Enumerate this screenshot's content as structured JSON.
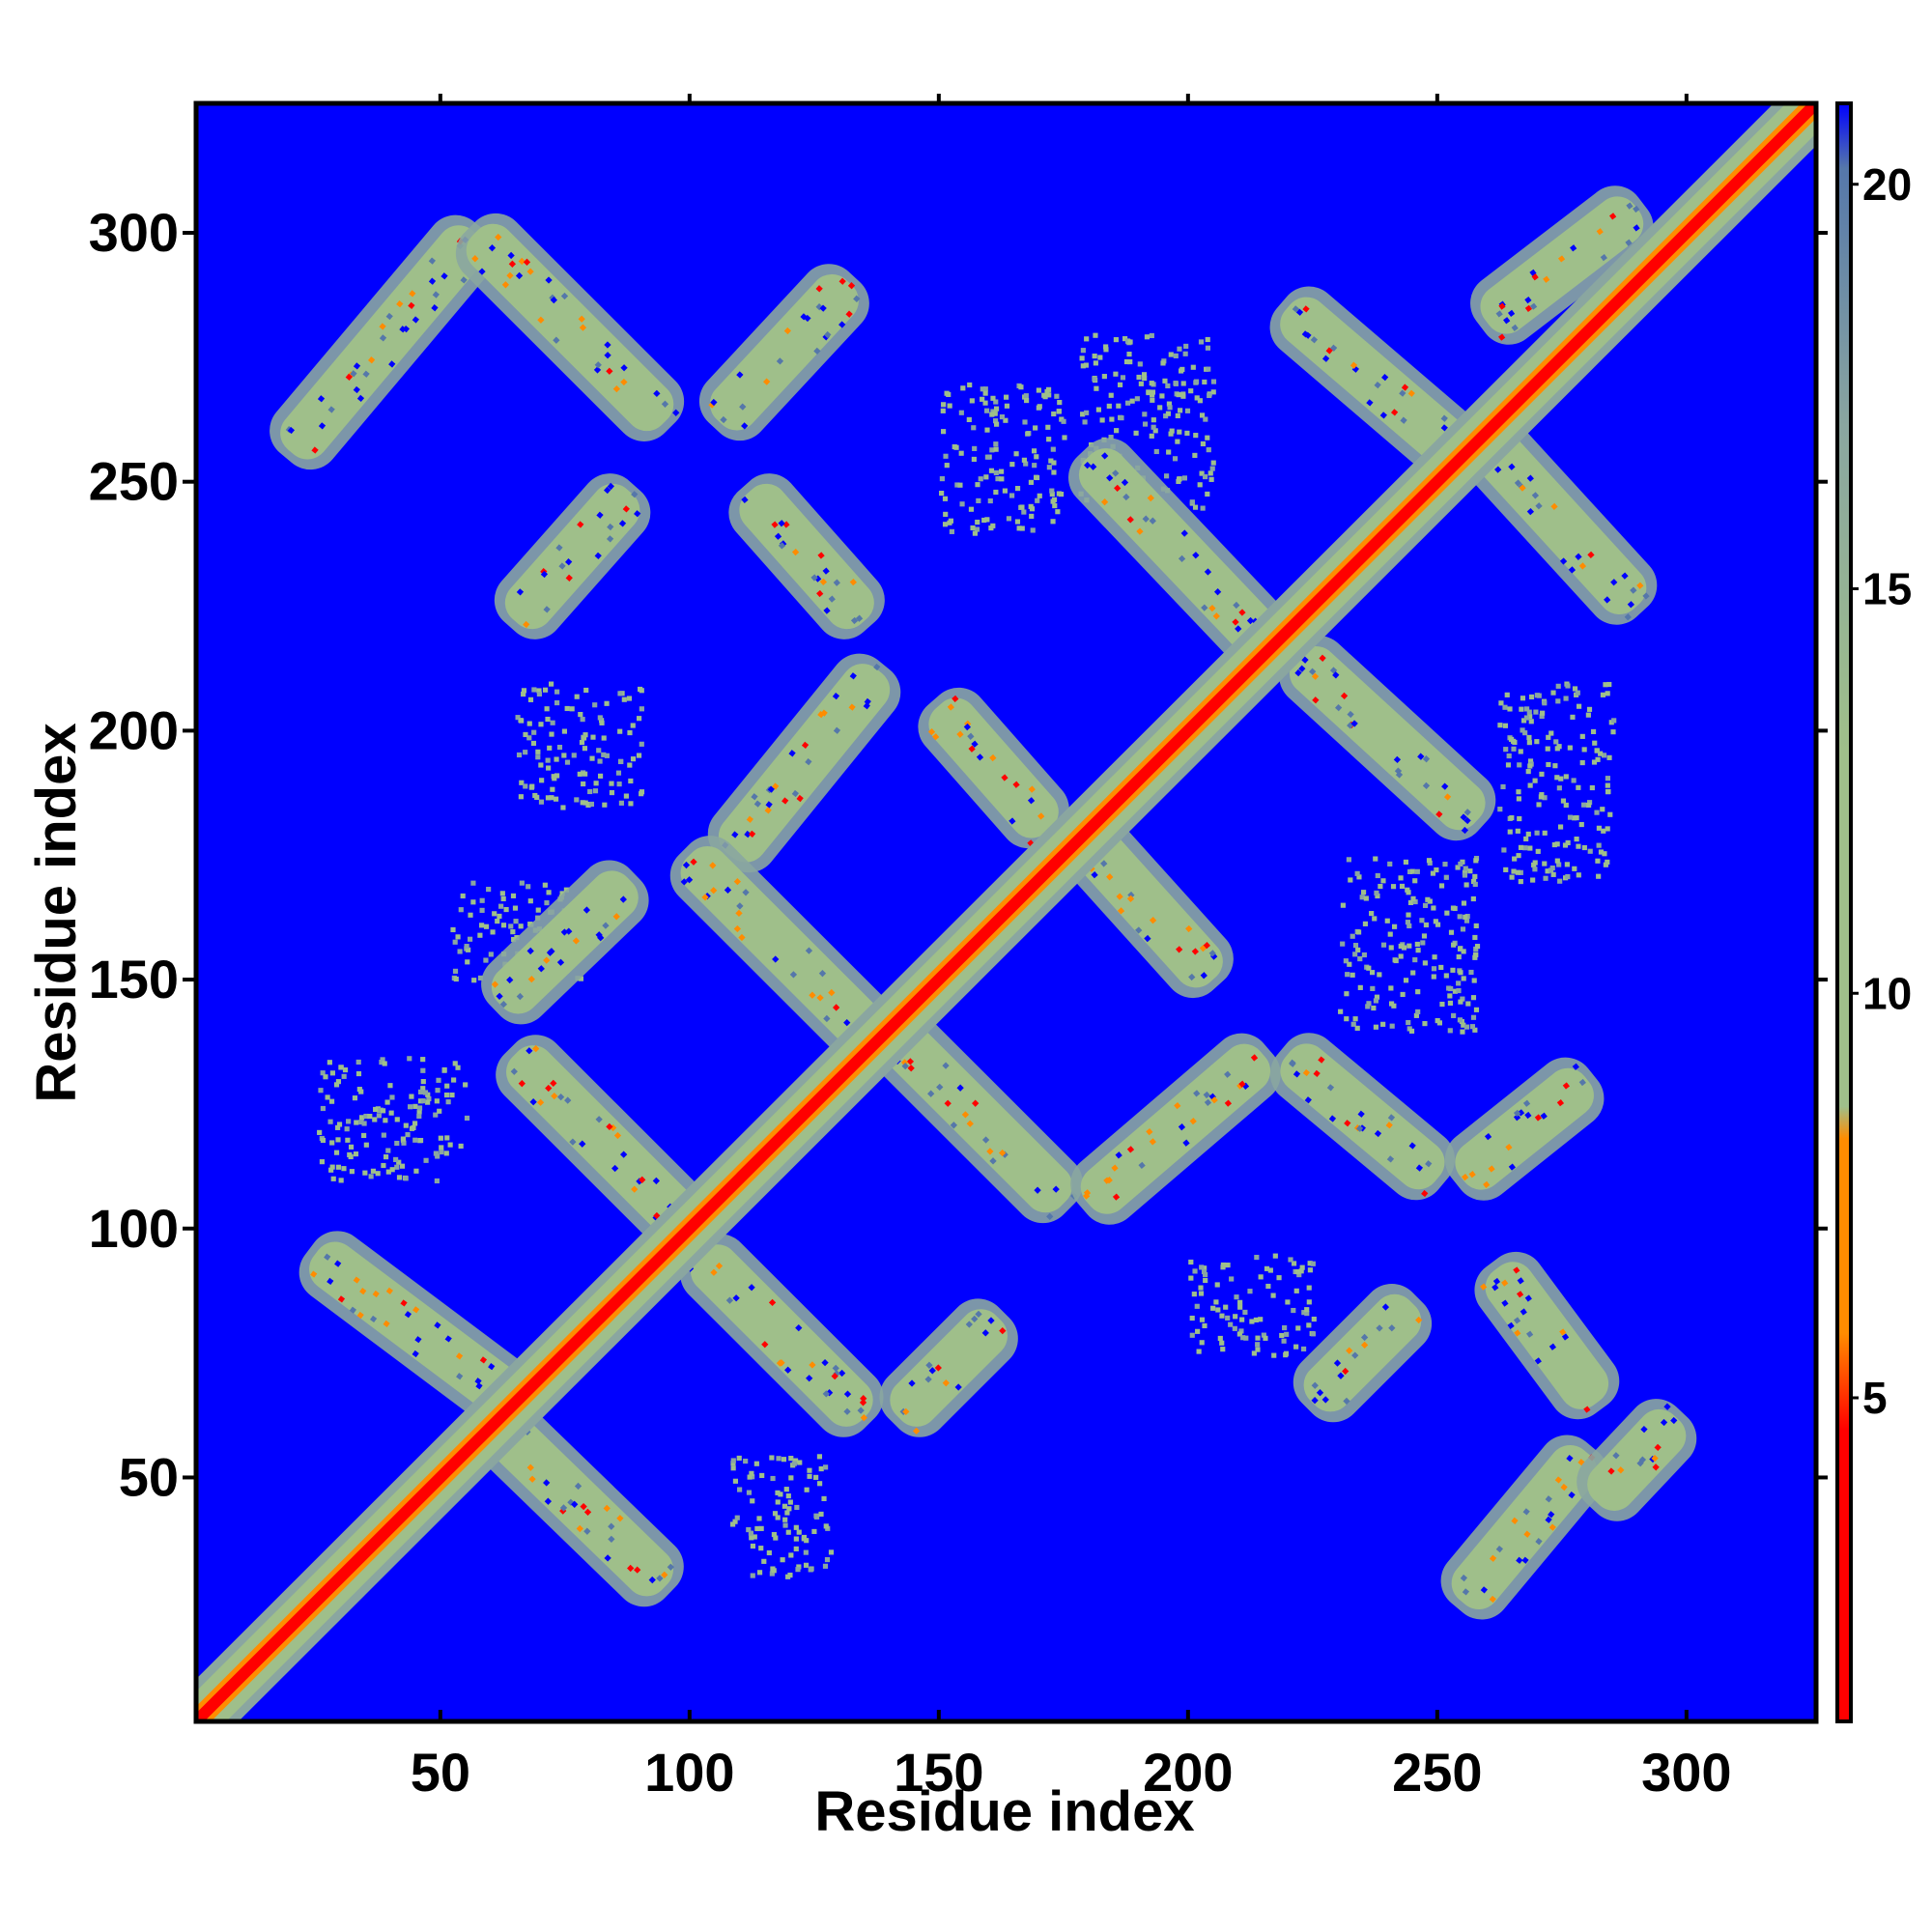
{
  "chart_data": {
    "type": "heatmap",
    "title": "",
    "xlabel": "Residue index",
    "ylabel": "Residue index",
    "x_range": [
      1,
      326
    ],
    "y_range": [
      1,
      326
    ],
    "xticks": [
      50,
      100,
      150,
      200,
      250,
      300
    ],
    "yticks": [
      50,
      100,
      150,
      200,
      250,
      300
    ],
    "xtick_labels": [
      "50",
      "100",
      "150",
      "200",
      "250",
      "300"
    ],
    "ytick_labels": [
      "50",
      "100",
      "150",
      "200",
      "250",
      "300"
    ],
    "colorbar": {
      "range": [
        1,
        21
      ],
      "ticks": [
        5,
        10,
        15,
        20
      ],
      "tick_labels": [
        "5",
        "10",
        "15",
        "20"
      ],
      "placement": "right",
      "colors": {
        "low": "#ff0000",
        "mid_low": "#ff8c00",
        "mid": "#9fbf8a",
        "mid_high": "#8aa6a0",
        "high": "#5577aa",
        "background": "#0000ff"
      }
    },
    "bands": [
      {
        "kind": "diagonal",
        "x": [
          1,
          326
        ],
        "y": [
          1,
          326
        ]
      },
      {
        "kind": "contact",
        "x": [
          20,
          57
        ],
        "y": [
          256,
          300
        ]
      },
      {
        "kind": "contact",
        "x": [
          57,
          95
        ],
        "y": [
          300,
          262
        ]
      },
      {
        "kind": "contact",
        "x": [
          106,
          132
        ],
        "y": [
          262,
          290
        ]
      },
      {
        "kind": "contact",
        "x": [
          112,
          135
        ],
        "y": [
          248,
          222
        ]
      },
      {
        "kind": "contact",
        "x": [
          65,
          88
        ],
        "y": [
          222,
          248
        ]
      },
      {
        "kind": "contact",
        "x": [
          108,
          138
        ],
        "y": [
          175,
          212
        ]
      },
      {
        "kind": "contact",
        "x": [
          100,
          140
        ],
        "y": [
          175,
          135
        ]
      },
      {
        "kind": "contact",
        "x": [
          62,
          88
        ],
        "y": [
          145,
          170
        ]
      },
      {
        "kind": "contact",
        "x": [
          65,
          100
        ],
        "y": [
          135,
          100
        ]
      },
      {
        "kind": "contact",
        "x": [
          25,
          65
        ],
        "y": [
          95,
          65
        ]
      },
      {
        "kind": "contact",
        "x": [
          62,
          95
        ],
        "y": [
          60,
          28
        ]
      },
      {
        "kind": "contact",
        "x": [
          102,
          135
        ],
        "y": [
          95,
          62
        ]
      },
      {
        "kind": "contact",
        "x": [
          142,
          162
        ],
        "y": [
          62,
          82
        ]
      },
      {
        "kind": "contact",
        "x": [
          140,
          175
        ],
        "y": [
          140,
          105
        ]
      },
      {
        "kind": "contact",
        "x": [
          150,
          172
        ],
        "y": [
          205,
          180
        ]
      },
      {
        "kind": "contact",
        "x": [
          178,
          205
        ],
        "y": [
          180,
          150
        ]
      },
      {
        "kind": "contact",
        "x": [
          180,
          215
        ],
        "y": [
          105,
          135
        ]
      },
      {
        "kind": "contact",
        "x": [
          220,
          250
        ],
        "y": [
          135,
          110
        ]
      },
      {
        "kind": "contact",
        "x": [
          180,
          218
        ],
        "y": [
          255,
          215
        ]
      },
      {
        "kind": "contact",
        "x": [
          220,
          255
        ],
        "y": [
          285,
          255
        ]
      },
      {
        "kind": "contact",
        "x": [
          222,
          258
        ],
        "y": [
          215,
          182
        ]
      },
      {
        "kind": "contact",
        "x": [
          258,
          290
        ],
        "y": [
          260,
          225
        ]
      },
      {
        "kind": "contact",
        "x": [
          260,
          290
        ],
        "y": [
          282,
          305
        ]
      },
      {
        "kind": "contact",
        "x": [
          255,
          280
        ],
        "y": [
          110,
          130
        ]
      },
      {
        "kind": "contact",
        "x": [
          262,
          282
        ],
        "y": [
          92,
          65
        ]
      },
      {
        "kind": "contact",
        "x": [
          255,
          280
        ],
        "y": [
          25,
          55
        ]
      },
      {
        "kind": "contact",
        "x": [
          282,
          298
        ],
        "y": [
          45,
          62
        ]
      },
      {
        "kind": "contact",
        "x": [
          225,
          245
        ],
        "y": [
          65,
          85
        ]
      },
      {
        "kind": "sparse",
        "x": [
          25,
          55
        ],
        "y": [
          110,
          135
        ]
      },
      {
        "kind": "sparse",
        "x": [
          52,
          78
        ],
        "y": [
          150,
          170
        ]
      },
      {
        "kind": "sparse",
        "x": [
          108,
          128
        ],
        "y": [
          30,
          55
        ]
      },
      {
        "kind": "sparse",
        "x": [
          150,
          175
        ],
        "y": [
          240,
          270
        ]
      },
      {
        "kind": "sparse",
        "x": [
          178,
          205
        ],
        "y": [
          245,
          280
        ]
      },
      {
        "kind": "sparse",
        "x": [
          200,
          225
        ],
        "y": [
          75,
          95
        ]
      },
      {
        "kind": "sparse",
        "x": [
          230,
          258
        ],
        "y": [
          140,
          175
        ]
      },
      {
        "kind": "sparse",
        "x": [
          262,
          285
        ],
        "y": [
          170,
          210
        ]
      },
      {
        "kind": "sparse",
        "x": [
          65,
          90
        ],
        "y": [
          185,
          210
        ]
      }
    ]
  }
}
